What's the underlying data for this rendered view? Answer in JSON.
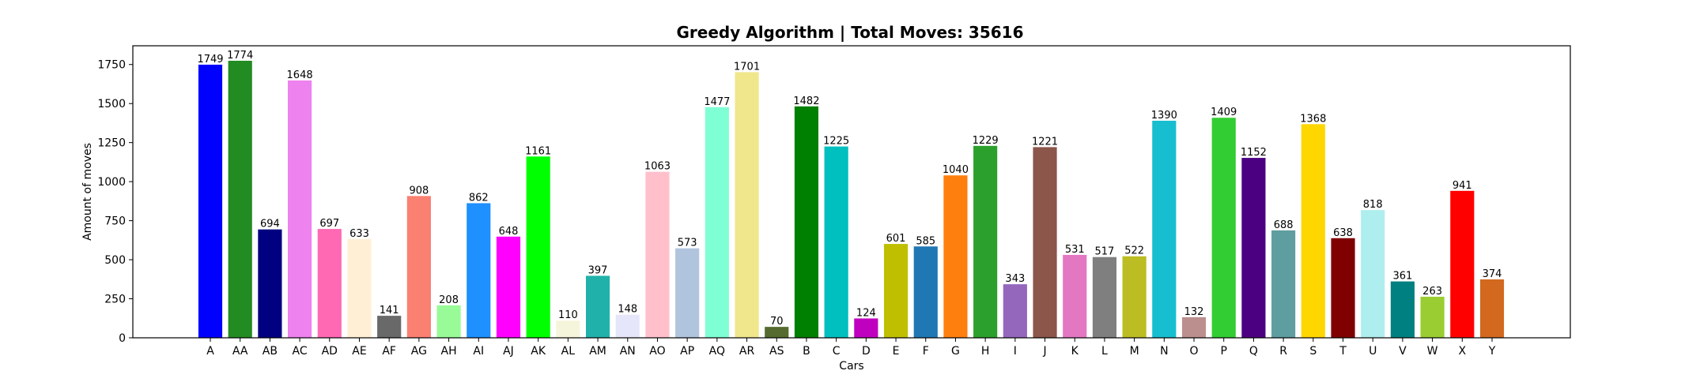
{
  "chart_data": {
    "type": "bar",
    "title": "Greedy Algorithm | Total Moves: 35616",
    "xlabel": "Cars",
    "ylabel": "Amount of moves",
    "ylim": [
      0,
      1870
    ],
    "yticks": [
      0,
      250,
      500,
      750,
      1000,
      1250,
      1500,
      1750
    ],
    "grid": false,
    "legend": "none",
    "categories": [
      "A",
      "AA",
      "AB",
      "AC",
      "AD",
      "AE",
      "AF",
      "AG",
      "AH",
      "AI",
      "AJ",
      "AK",
      "AL",
      "AM",
      "AN",
      "AO",
      "AP",
      "AQ",
      "AR",
      "AS",
      "B",
      "C",
      "D",
      "E",
      "F",
      "G",
      "H",
      "I",
      "J",
      "K",
      "L",
      "M",
      "N",
      "O",
      "P",
      "Q",
      "R",
      "S",
      "T",
      "U",
      "V",
      "W",
      "X",
      "Y"
    ],
    "values": [
      1749,
      1774,
      694,
      1648,
      697,
      633,
      141,
      908,
      208,
      862,
      648,
      1161,
      110,
      397,
      148,
      1063,
      573,
      1477,
      1701,
      70,
      1482,
      1225,
      124,
      601,
      585,
      1040,
      1229,
      343,
      1221,
      531,
      517,
      522,
      1390,
      132,
      1409,
      1152,
      688,
      1368,
      638,
      818,
      361,
      263,
      941,
      374
    ],
    "colors": [
      "#0000ff",
      "#228b22",
      "#000080",
      "#ee82ee",
      "#ff69b4",
      "#ffefd5",
      "#696969",
      "#fa8072",
      "#98fb98",
      "#1e90ff",
      "#ff00ff",
      "#00ff00",
      "#f5f5dc",
      "#20b2aa",
      "#e6e6fa",
      "#ffc0cb",
      "#b0c4de",
      "#7fffd4",
      "#f0e68c",
      "#556b2f",
      "#008000",
      "#00bfbf",
      "#bf00bf",
      "#bfbf00",
      "#1f77b4",
      "#ff7f0e",
      "#2ca02c",
      "#9467bd",
      "#8c564b",
      "#e377c2",
      "#7f7f7f",
      "#bcbd22",
      "#17becf",
      "#bc8f8f",
      "#32cd32",
      "#4b0082",
      "#5f9ea0",
      "#ffd700",
      "#800000",
      "#afeeee",
      "#008080",
      "#9acd32",
      "#ff0000",
      "#d2691e"
    ]
  }
}
